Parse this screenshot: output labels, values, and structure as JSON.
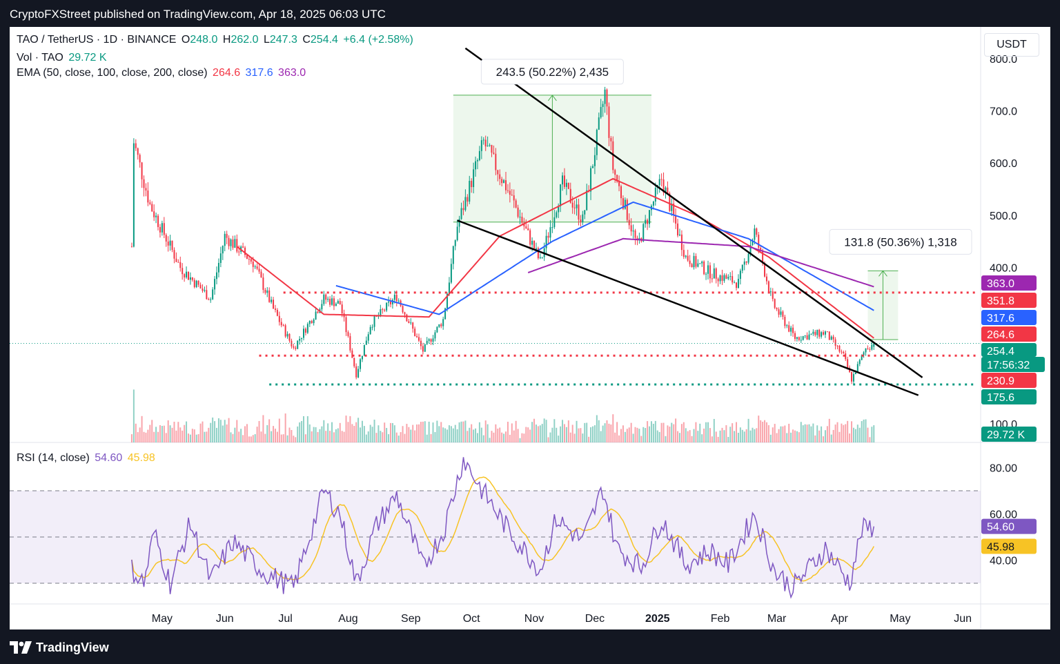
{
  "header": {
    "published": "CryptoFXStreet published on TradingView.com, Apr 18, 2025 06:03 UTC"
  },
  "footer": {
    "brand": "TradingView",
    "logo_icon": "tradingview-logo-icon"
  },
  "legend": {
    "symbol": "TAO / TetherUS · 1D · BINANCE",
    "o_label": "O",
    "o": "248.0",
    "h_label": "H",
    "h": "262.0",
    "l_label": "L",
    "l": "247.3",
    "c_label": "C",
    "c": "254.4",
    "change": "+6.4 (+2.58%)",
    "vol_label": "Vol · TAO",
    "vol": "29.72 K",
    "ema_label": "EMA (50, close, 100, close, 200, close)",
    "ema50": "264.6",
    "ema100": "317.6",
    "ema200": "363.0",
    "rsi_label": "RSI (14, close)",
    "rsi": "54.60",
    "rsi_ma": "45.98"
  },
  "currency_button": "USDT",
  "colors": {
    "up": "#089981",
    "down": "#f23645",
    "ema50": "#f23645",
    "ema100": "#2962ff",
    "ema200": "#9c27b0",
    "rsi": "#7e57c2",
    "rsi_ma": "#f7c325",
    "support": "#089981"
  },
  "chart_data": [
    {
      "type": "candlestick",
      "title": "TAO / TetherUS · 1D · BINANCE",
      "ylim": [
        75,
        810
      ],
      "y_ticks": [
        "800.0",
        "700.0",
        "600.0",
        "500.0",
        "400.0",
        "100.0"
      ],
      "x_ticks": [
        "May",
        "Jun",
        "Jul",
        "Aug",
        "Sep",
        "Oct",
        "Nov",
        "Dec",
        "2025",
        "Feb",
        "Mar",
        "Apr",
        "May",
        "Jun"
      ],
      "price_keypoints": [
        [
          "2024-04-16",
          440
        ],
        [
          "2024-04-17",
          640
        ],
        [
          "2024-04-25",
          520
        ],
        [
          "2024-05-10",
          400
        ],
        [
          "2024-05-25",
          340
        ],
        [
          "2024-06-01",
          460
        ],
        [
          "2024-06-15",
          410
        ],
        [
          "2024-06-25",
          320
        ],
        [
          "2024-07-05",
          245
        ],
        [
          "2024-07-20",
          340
        ],
        [
          "2024-07-28",
          330
        ],
        [
          "2024-08-05",
          195
        ],
        [
          "2024-08-12",
          290
        ],
        [
          "2024-08-25",
          345
        ],
        [
          "2024-09-07",
          240
        ],
        [
          "2024-09-17",
          300
        ],
        [
          "2024-09-24",
          480
        ],
        [
          "2024-10-07",
          640
        ],
        [
          "2024-10-20",
          540
        ],
        [
          "2024-11-04",
          410
        ],
        [
          "2024-11-15",
          560
        ],
        [
          "2024-11-25",
          490
        ],
        [
          "2024-12-06",
          735
        ],
        [
          "2024-12-10",
          590
        ],
        [
          "2024-12-22",
          440
        ],
        [
          "2025-01-03",
          570
        ],
        [
          "2025-01-15",
          420
        ],
        [
          "2025-01-27",
          390
        ],
        [
          "2025-02-10",
          370
        ],
        [
          "2025-02-18",
          470
        ],
        [
          "2025-02-27",
          330
        ],
        [
          "2025-03-10",
          265
        ],
        [
          "2025-03-25",
          275
        ],
        [
          "2025-04-03",
          230
        ],
        [
          "2025-04-07",
          185
        ],
        [
          "2025-04-14",
          245
        ],
        [
          "2025-04-18",
          254
        ]
      ],
      "ema_keypoints": {
        "ema50": [
          [
            "2024-06-07",
            440
          ],
          [
            "2024-07-20",
            310
          ],
          [
            "2024-09-10",
            305
          ],
          [
            "2024-10-15",
            460
          ],
          [
            "2024-12-10",
            570
          ],
          [
            "2025-01-20",
            500
          ],
          [
            "2025-02-25",
            420
          ],
          [
            "2025-04-18",
            264.6
          ]
        ],
        "ema100": [
          [
            "2024-07-26",
            365
          ],
          [
            "2024-09-15",
            310
          ],
          [
            "2024-11-10",
            450
          ],
          [
            "2024-12-20",
            525
          ],
          [
            "2025-02-15",
            455
          ],
          [
            "2025-04-18",
            317.6
          ]
        ],
        "ema200": [
          [
            "2024-10-29",
            390
          ],
          [
            "2024-12-15",
            455
          ],
          [
            "2025-02-15",
            440
          ],
          [
            "2025-04-18",
            363.0
          ]
        ]
      },
      "levels": [
        {
          "label": "351.8",
          "value": 351.8,
          "style": "dotted",
          "color": "#f23645"
        },
        {
          "label": "230.9",
          "value": 230.9,
          "style": "dotted",
          "color": "#f23645"
        },
        {
          "label": "175.6",
          "value": 175.6,
          "style": "dotted",
          "color": "#089981"
        }
      ],
      "price_badges": [
        {
          "label": "363.0",
          "color": "#9c27b0"
        },
        {
          "label": "351.8",
          "color": "#f23645"
        },
        {
          "label": "317.6",
          "color": "#2962ff"
        },
        {
          "label": "264.6",
          "color": "#f23645"
        },
        {
          "label": "254.4",
          "color": "#089981"
        },
        {
          "label": "17:56:32",
          "color": "#089981"
        },
        {
          "label": "230.9",
          "color": "#f23645"
        },
        {
          "label": "175.6",
          "color": "#089981"
        },
        {
          "label": "29.72 K",
          "color": "#089981"
        }
      ],
      "annotations": [
        {
          "label": "243.5 (50.22%) 2,435",
          "from_date": "2024-09-22",
          "to_date": "2024-12-29",
          "from_price": 486.8,
          "to_price": 730
        },
        {
          "label": "131.8 (50.36%) 1,318",
          "from_date": "2025-04-15",
          "to_date": "2025-04-30",
          "from_price": 261.7,
          "to_price": 393.5
        }
      ],
      "trendlines": [
        {
          "name": "upper-wedge",
          "from": [
            "2024-09-28",
            820
          ],
          "to": [
            "2025-05-12",
            189
          ]
        },
        {
          "name": "lower-wedge",
          "from": [
            "2024-09-24",
            490
          ],
          "to": [
            "2025-05-10",
            155
          ]
        }
      ]
    },
    {
      "type": "line",
      "title": "RSI (14, close)",
      "ylim": [
        20,
        92
      ],
      "y_ticks": [
        "80.00",
        "60.00",
        "40.00"
      ],
      "bands": [
        70,
        50,
        30
      ],
      "series": [
        {
          "name": "RSI",
          "last": 54.6
        },
        {
          "name": "RSI-based MA",
          "last": 45.98
        }
      ],
      "rsi_keypoints": [
        [
          "2024-04-16",
          36
        ],
        [
          "2024-04-22",
          30
        ],
        [
          "2024-04-27",
          52
        ],
        [
          "2024-05-05",
          30
        ],
        [
          "2024-05-15",
          56
        ],
        [
          "2024-05-25",
          31
        ],
        [
          "2024-06-05",
          48
        ],
        [
          "2024-06-20",
          35
        ],
        [
          "2024-07-05",
          28
        ],
        [
          "2024-07-20",
          70
        ],
        [
          "2024-07-28",
          60
        ],
        [
          "2024-08-05",
          30
        ],
        [
          "2024-08-15",
          55
        ],
        [
          "2024-08-25",
          68
        ],
        [
          "2024-09-07",
          37
        ],
        [
          "2024-09-17",
          52
        ],
        [
          "2024-09-27",
          84
        ],
        [
          "2024-10-05",
          72
        ],
        [
          "2024-10-20",
          52
        ],
        [
          "2024-11-04",
          36
        ],
        [
          "2024-11-12",
          58
        ],
        [
          "2024-11-25",
          48
        ],
        [
          "2024-12-05",
          71
        ],
        [
          "2024-12-12",
          45
        ],
        [
          "2024-12-24",
          37
        ],
        [
          "2025-01-03",
          58
        ],
        [
          "2025-01-15",
          38
        ],
        [
          "2025-01-27",
          44
        ],
        [
          "2025-02-05",
          38
        ],
        [
          "2025-02-18",
          60
        ],
        [
          "2025-02-28",
          35
        ],
        [
          "2025-03-09",
          28
        ],
        [
          "2025-03-25",
          45
        ],
        [
          "2025-04-06",
          30
        ],
        [
          "2025-04-12",
          53
        ],
        [
          "2025-04-18",
          54.6
        ]
      ]
    }
  ]
}
